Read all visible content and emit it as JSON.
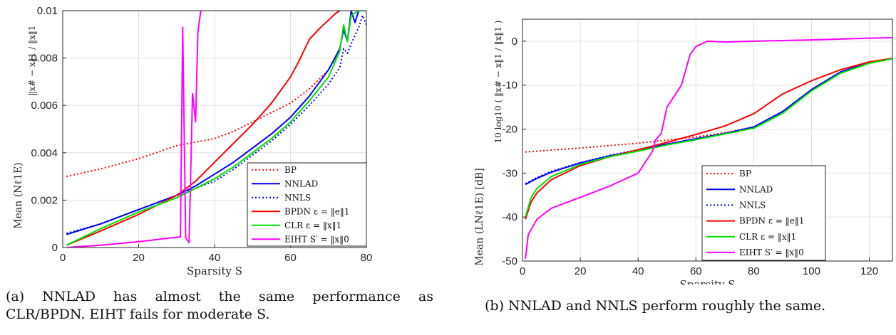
{
  "chart_data": [
    {
      "type": "line",
      "xlabel": "Sparsity    S",
      "ylabel": "Mean (Nℓ1E)",
      "ylabel_formula": "‖x# − x‖1 / ‖x‖1",
      "xlim": [
        0,
        80
      ],
      "ylim": [
        0,
        0.01
      ],
      "xticks": [
        0,
        20,
        40,
        60,
        80
      ],
      "yticks": [
        0,
        0.002,
        0.004,
        0.006,
        0.008,
        0.01
      ],
      "xtick_labels": [
        "0",
        "20",
        "40",
        "60",
        "80"
      ],
      "ytick_labels": [
        "0",
        "0.002",
        "0.004",
        "0.006",
        "0.008",
        "0.01"
      ],
      "grid": true,
      "legend_position": "bottom-right",
      "series": [
        {
          "name": "BP",
          "color": "#ff0000",
          "dash": "dotted",
          "x": [
            1,
            10,
            20,
            30,
            40,
            45,
            50,
            55,
            60,
            65,
            70,
            73
          ],
          "y": [
            0.003,
            0.00332,
            0.00375,
            0.0043,
            0.0046,
            0.0049,
            0.0053,
            0.0057,
            0.0061,
            0.0067,
            0.0075,
            0.0083
          ]
        },
        {
          "name": "NNLAD",
          "color": "#0000ff",
          "dash": "solid",
          "x": [
            1,
            10,
            20,
            30,
            35,
            40,
            45,
            50,
            55,
            60,
            65,
            70,
            73,
            74,
            75,
            76,
            77,
            78,
            80
          ],
          "y": [
            0.00055,
            0.001,
            0.0016,
            0.0022,
            0.0026,
            0.0031,
            0.0036,
            0.0042,
            0.0048,
            0.0055,
            0.0064,
            0.0075,
            0.0084,
            0.0092,
            0.0087,
            0.01,
            0.0095,
            0.01,
            0.01
          ]
        },
        {
          "name": "NNLS",
          "color": "#0000ff",
          "dash": "dotted",
          "x": [
            1,
            10,
            20,
            30,
            35,
            40,
            45,
            50,
            55,
            60,
            65,
            70,
            73,
            74,
            75,
            76,
            78,
            79,
            80
          ],
          "y": [
            0.0006,
            0.001,
            0.0016,
            0.0022,
            0.0025,
            0.0028,
            0.0033,
            0.0039,
            0.0045,
            0.0052,
            0.006,
            0.0069,
            0.0076,
            0.0084,
            0.0082,
            0.0086,
            0.0093,
            0.0098,
            0.0094
          ]
        },
        {
          "name": "BPDN ε = ‖e‖1",
          "color": "#ff0000",
          "dash": "solid",
          "x": [
            1,
            10,
            20,
            30,
            35,
            40,
            45,
            50,
            55,
            60,
            62,
            65,
            68,
            70,
            72,
            73
          ],
          "y": [
            0.0001,
            0.0007,
            0.0014,
            0.0022,
            0.0028,
            0.0036,
            0.0044,
            0.0052,
            0.0061,
            0.0072,
            0.0078,
            0.0088,
            0.0093,
            0.0096,
            0.0099,
            0.01
          ]
        },
        {
          "name": "CLR ε = ‖x‖1",
          "color": "#00e000",
          "dash": "solid",
          "x": [
            1,
            10,
            20,
            30,
            35,
            40,
            45,
            50,
            55,
            60,
            65,
            70,
            73,
            74,
            75,
            76,
            78,
            80
          ],
          "y": [
            0.0001,
            0.0008,
            0.0015,
            0.0021,
            0.0025,
            0.0029,
            0.0034,
            0.004,
            0.0046,
            0.0053,
            0.0062,
            0.0072,
            0.0083,
            0.0094,
            0.0087,
            0.0098,
            0.01,
            0.01
          ]
        },
        {
          "name": "EIHT S′ = ‖x‖0",
          "color": "#ff00ff",
          "dash": "solid",
          "x": [
            1,
            10,
            20,
            31,
            31.6,
            32.4,
            33.3,
            34.2,
            35,
            35.6,
            36.2,
            36.4
          ],
          "y": [
            0.0,
            0.0001,
            0.00025,
            0.00045,
            0.0093,
            0.0004,
            0.0002,
            0.0065,
            0.0053,
            0.0091,
            0.0098,
            0.01
          ]
        }
      ]
    },
    {
      "type": "line",
      "xlabel": "Sparsity    S",
      "ylabel": "Mean (LNℓ1E) [dB]",
      "ylabel_formula": "10 log10 ( ‖x# − x‖1 / ‖x‖1 )",
      "xlim": [
        0,
        128
      ],
      "ylim": [
        -50,
        5
      ],
      "xticks": [
        0,
        20,
        40,
        60,
        80,
        100,
        120
      ],
      "yticks": [
        -50,
        -40,
        -30,
        -20,
        -10,
        0
      ],
      "xtick_labels": [
        "0",
        "20",
        "40",
        "60",
        "80",
        "100",
        "120"
      ],
      "ytick_labels": [
        "-50",
        "-40",
        "-30",
        "-20",
        "-10",
        "0"
      ],
      "grid": true,
      "legend_position": "bottom-right",
      "series": [
        {
          "name": "BP",
          "color": "#ff0000",
          "dash": "dotted",
          "x": [
            1,
            20,
            40,
            60,
            70,
            80
          ],
          "y": [
            -25.2,
            -24.3,
            -23.2,
            -21.8,
            -20.8,
            -19.5
          ]
        },
        {
          "name": "NNLAD",
          "color": "#0000ff",
          "dash": "solid",
          "x": [
            1,
            5,
            10,
            20,
            30,
            40,
            50,
            60,
            70,
            80,
            90,
            100,
            110,
            120,
            128
          ],
          "y": [
            -32.6,
            -31.2,
            -29.8,
            -27.7,
            -26.1,
            -24.8,
            -23.4,
            -22.2,
            -21.0,
            -19.5,
            -16.0,
            -11.0,
            -7.0,
            -4.8,
            -3.9
          ]
        },
        {
          "name": "NNLS",
          "color": "#0000ff",
          "dash": "dotted",
          "x": [
            1,
            5,
            10,
            20,
            30,
            40,
            50,
            60,
            70,
            80,
            90,
            100,
            110,
            120,
            128
          ],
          "y": [
            -32.4,
            -31.0,
            -29.6,
            -27.6,
            -26.0,
            -24.7,
            -23.4,
            -22.2,
            -21.0,
            -19.6,
            -16.2,
            -11.2,
            -7.2,
            -5.0,
            -4.0
          ]
        },
        {
          "name": "BPDN ε = ‖e‖1",
          "color": "#ff0000",
          "dash": "solid",
          "x": [
            1,
            3,
            5,
            10,
            20,
            30,
            40,
            50,
            60,
            70,
            80,
            90,
            100,
            110,
            120,
            128
          ],
          "y": [
            -40.5,
            -36.5,
            -34.5,
            -31.5,
            -28.3,
            -26.3,
            -24.7,
            -23.0,
            -21.2,
            -19.3,
            -16.5,
            -12.0,
            -9.0,
            -6.5,
            -4.7,
            -3.9
          ]
        },
        {
          "name": "CLR ε = ‖x‖1",
          "color": "#00e000",
          "dash": "solid",
          "x": [
            1,
            3,
            5,
            10,
            20,
            30,
            40,
            50,
            60,
            70,
            80,
            90,
            100,
            110,
            120,
            128
          ],
          "y": [
            -40.0,
            -35.5,
            -33.5,
            -30.8,
            -28.0,
            -26.3,
            -25.0,
            -23.6,
            -22.4,
            -21.1,
            -19.8,
            -16.4,
            -11.3,
            -7.3,
            -5.0,
            -4.0
          ]
        },
        {
          "name": "EIHT S′ = ‖x‖0",
          "color": "#ff00ff",
          "dash": "solid",
          "x": [
            1,
            2,
            5,
            10,
            20,
            30,
            40,
            45,
            46,
            48,
            50,
            52,
            55,
            58,
            60,
            64,
            70,
            80,
            100,
            120,
            128
          ],
          "y": [
            -49.5,
            -44.0,
            -40.5,
            -38.0,
            -35.5,
            -33.0,
            -30.0,
            -25.0,
            -22.5,
            -21.0,
            -15.0,
            -13.0,
            -10.0,
            -3.0,
            -1.2,
            0.0,
            -0.2,
            0.0,
            0.3,
            0.7,
            0.8
          ]
        }
      ]
    }
  ],
  "captions": {
    "a_line1": "(a)    NNLAD has almost the same performance as",
    "a_line2": "CLR/BPDN. EIHT fails for moderate S.",
    "b": "(b)  NNLAD and NNLS perform roughly the same."
  }
}
